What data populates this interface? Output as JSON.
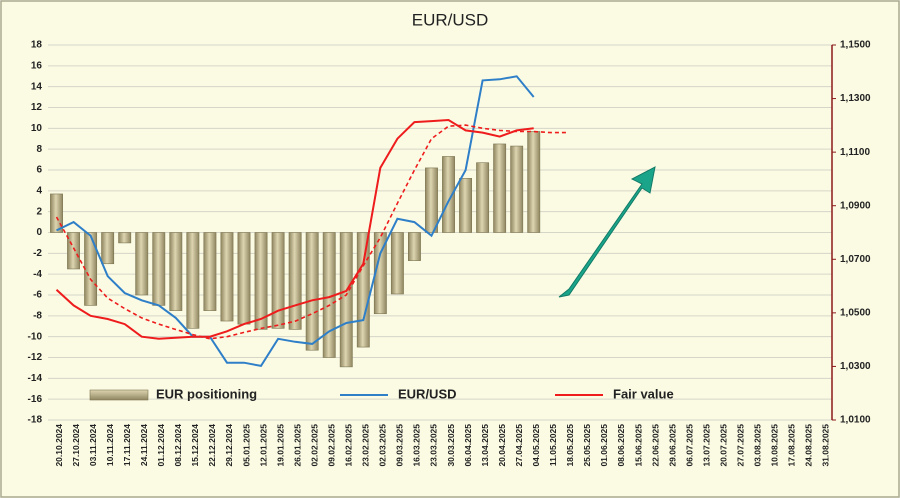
{
  "chart_data": {
    "type": "bar",
    "title": "EUR/USD",
    "categories": [
      "20.10.2024",
      "27.10.2024",
      "03.11.2024",
      "10.11.2024",
      "17.11.2024",
      "24.11.2024",
      "01.12.2024",
      "08.12.2024",
      "15.12.2024",
      "22.12.2024",
      "29.12.2024",
      "05.01.2025",
      "12.01.2025",
      "19.01.2025",
      "26.01.2025",
      "02.02.2025",
      "09.02.2025",
      "16.02.2025",
      "23.02.2025",
      "02.03.2025",
      "09.03.2025",
      "16.03.2025",
      "23.03.2025",
      "30.03.2025",
      "06.04.2025",
      "13.04.2025",
      "20.04.2025",
      "27.04.2025",
      "04.05.2025",
      "11.05.2025",
      "18.05.2025",
      "25.05.2025",
      "01.06.2025",
      "08.06.2025",
      "15.06.2025",
      "22.06.2025",
      "29.06.2025",
      "06.07.2025",
      "13.07.2025",
      "20.07.2025",
      "27.07.2025",
      "03.08.2025",
      "10.08.2025",
      "17.08.2025",
      "24.08.2025",
      "31.08.2025"
    ],
    "series": [
      {
        "name": "EUR positioning",
        "type": "bar",
        "color": "#c8bf94",
        "values": [
          3.7,
          -3.5,
          -7,
          -3,
          -1,
          -6,
          -7,
          -7.5,
          -9.2,
          -7.5,
          -8.5,
          -8.8,
          -9.3,
          -9.2,
          -9.3,
          -11.3,
          -12,
          -12.9,
          -11,
          -7.8,
          -5.9,
          -2.7,
          6.2,
          7.3,
          5.2,
          6.7,
          8.5,
          8.3,
          9.7,
          null,
          null,
          null,
          null,
          null,
          null,
          null,
          null,
          null,
          null,
          null,
          null,
          null,
          null,
          null,
          null,
          null
        ]
      },
      {
        "name": "EUR/USD",
        "type": "line",
        "axis": "y2",
        "color": "#2e7fc8",
        "values": [
          1.0808,
          1.0839,
          1.0788,
          1.0637,
          1.0574,
          1.0547,
          1.0528,
          1.0481,
          1.0411,
          1.0411,
          1.0314,
          1.0314,
          1.0302,
          1.0403,
          1.0392,
          1.0384,
          1.0431,
          1.0462,
          1.0473,
          1.0722,
          1.0851,
          1.0839,
          1.0788,
          1.0917,
          1.1033,
          1.1368,
          1.1372,
          1.1383,
          1.1306,
          null,
          null,
          null,
          null,
          null,
          null,
          null,
          null,
          null,
          null,
          null,
          null,
          null,
          null,
          null,
          null,
          null
        ]
      },
      {
        "name": "Fair value",
        "type": "line",
        "axis": "y2",
        "color": "#ee1c1c",
        "values": [
          1.0586,
          1.0528,
          1.0489,
          1.0477,
          1.0458,
          1.0411,
          1.0403,
          1.0407,
          1.0411,
          1.0411,
          1.0431,
          1.0458,
          1.0477,
          1.0508,
          1.0528,
          1.0547,
          1.0559,
          1.0582,
          1.0683,
          1.1041,
          1.115,
          1.1212,
          1.1216,
          1.122,
          1.1181,
          1.1173,
          1.1158,
          1.1181,
          1.1189,
          null,
          null,
          null,
          null,
          null,
          null,
          null,
          null,
          null,
          null,
          null,
          null,
          null,
          null,
          null,
          null,
          null
        ]
      },
      {
        "type": "line",
        "axis": "y2",
        "color": "#ee1c1c",
        "dashed": true,
        "values": [
          1.0858,
          1.0742,
          1.0625,
          1.0555,
          1.0516,
          1.0481,
          1.0458,
          1.0438,
          1.0419,
          1.0403,
          1.0411,
          1.0427,
          1.0442,
          1.0454,
          1.0469,
          1.0497,
          1.0528,
          1.0567,
          1.0676,
          1.0781,
          1.0909,
          1.1033,
          1.115,
          1.1197,
          1.1201,
          1.1189,
          1.1181,
          1.1177,
          1.1177,
          1.1173,
          1.1173,
          null,
          null,
          null,
          null,
          null,
          null,
          null,
          null,
          null,
          null,
          null,
          null,
          null,
          null,
          null
        ]
      }
    ],
    "ylim": [
      -18,
      18
    ],
    "yticks": [
      -18,
      -16,
      -14,
      -12,
      -10,
      -8,
      -6,
      -4,
      -2,
      0,
      2,
      4,
      6,
      8,
      10,
      12,
      14,
      16,
      18
    ],
    "y2lim": [
      1.01,
      1.15
    ],
    "y2ticks": [
      {
        "value": 1.01,
        "label": "1,0100"
      },
      {
        "value": 1.03,
        "label": "1,0300"
      },
      {
        "value": 1.05,
        "label": "1,0500"
      },
      {
        "value": 1.07,
        "label": "1,0700"
      },
      {
        "value": 1.09,
        "label": "1,0900"
      },
      {
        "value": 1.11,
        "label": "1,1100"
      },
      {
        "value": 1.13,
        "label": "1,1300"
      },
      {
        "value": 1.15,
        "label": "1,1500"
      }
    ],
    "grid": true
  }
}
